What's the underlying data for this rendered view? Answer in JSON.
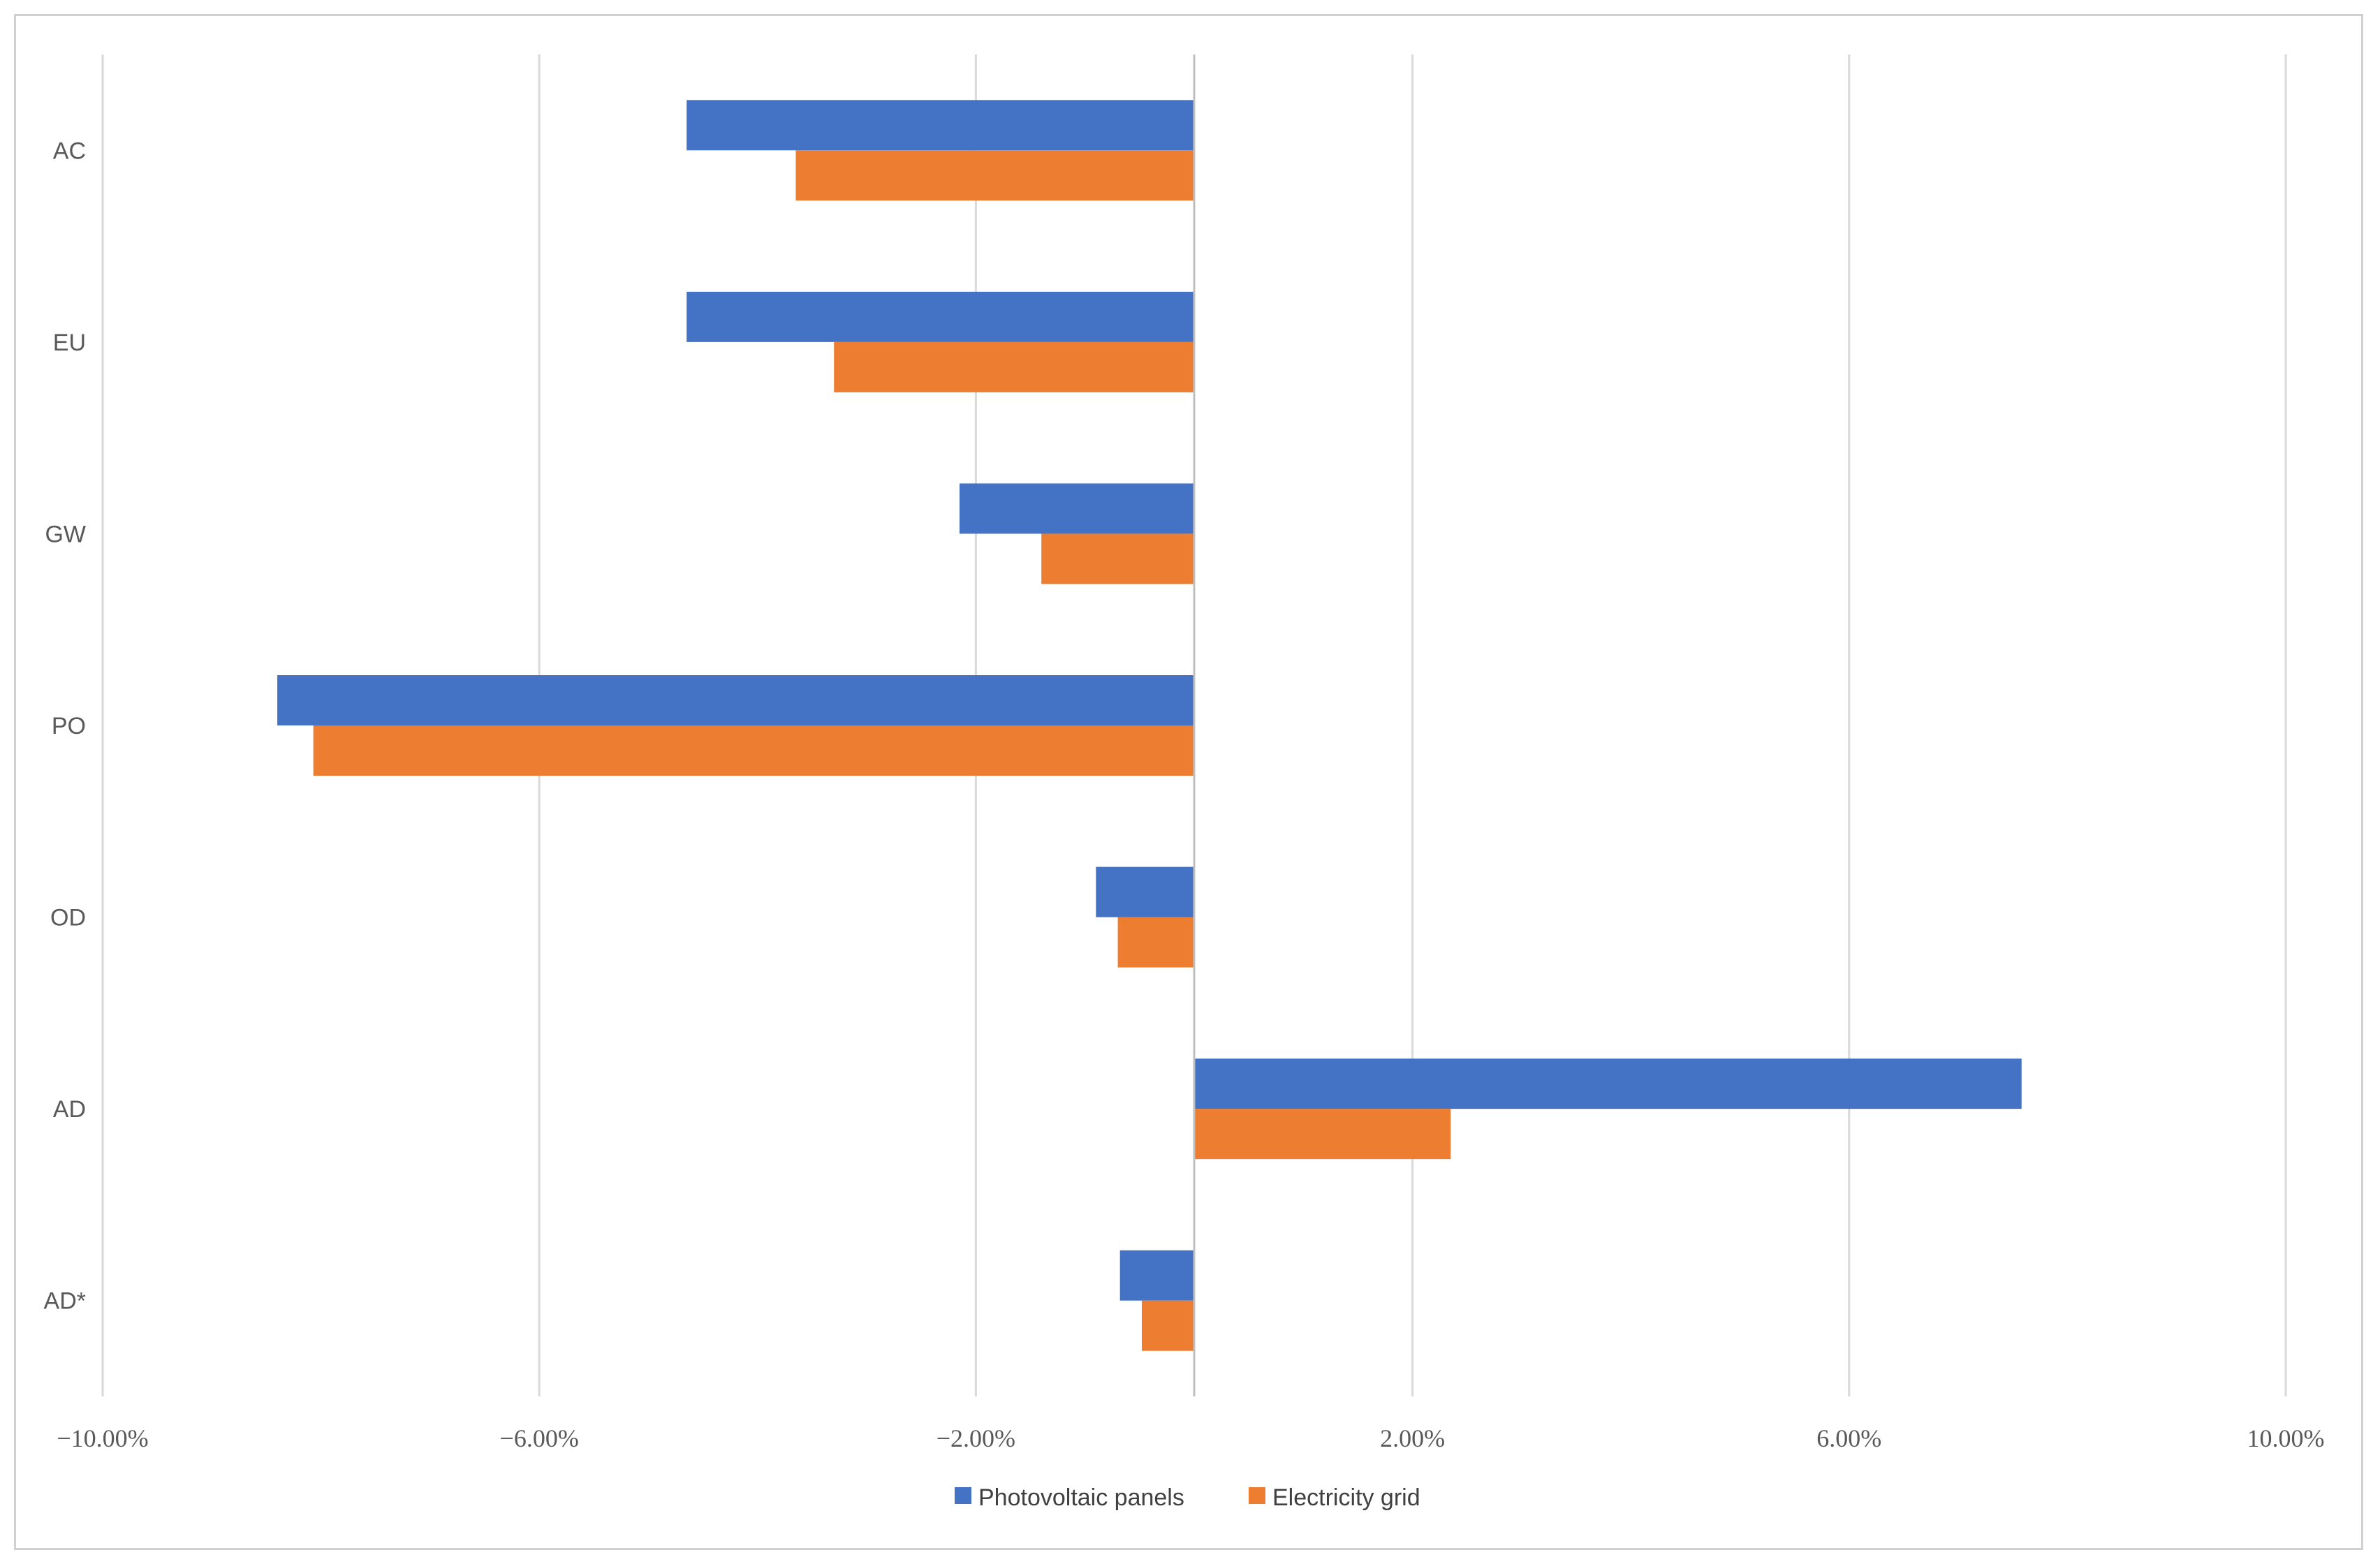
{
  "chart_data": {
    "type": "bar",
    "orientation": "horizontal",
    "categories": [
      "AC",
      "EU",
      "GW",
      "PO",
      "OD",
      "AD",
      "AD*"
    ],
    "series": [
      {
        "name": "Photovoltaic panels",
        "color": "#4472C4",
        "values": [
          -4.65,
          -4.65,
          -2.15,
          -8.4,
          -0.9,
          7.58,
          -0.68
        ]
      },
      {
        "name": "Electricity grid",
        "color": "#ED7D31",
        "values": [
          -3.65,
          -3.3,
          -1.4,
          -8.07,
          -0.7,
          2.35,
          -0.48
        ]
      }
    ],
    "x_ticks": [
      -10,
      -6,
      -2,
      2,
      6,
      10
    ],
    "x_tick_labels": [
      "−10.00%",
      "−6.00%",
      "−2.00%",
      "2.00%",
      "6.00%",
      "10.00%"
    ],
    "xlim": [
      -10,
      10
    ],
    "grid": true,
    "legend_position": "bottom-center",
    "title": "",
    "xlabel": "",
    "ylabel": ""
  }
}
